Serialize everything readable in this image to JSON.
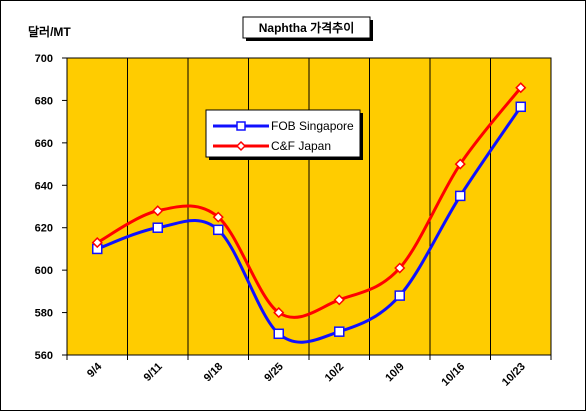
{
  "chart_data": {
    "type": "line",
    "title": "Naphtha 가격추이",
    "ylabel": "달러/MT",
    "xlabel": "",
    "categories": [
      "9/4",
      "9/11",
      "9/18",
      "9/25",
      "10/2",
      "10/9",
      "10/16",
      "10/23"
    ],
    "ylim": [
      560,
      700
    ],
    "yticks": [
      560,
      580,
      600,
      620,
      640,
      660,
      680,
      700
    ],
    "grid": true,
    "legend_position": "upper-left inside plot",
    "plot_background": "#FFCC00",
    "series": [
      {
        "name": "FOB Singapore",
        "values": [
          610,
          620,
          619,
          570,
          571,
          588,
          635,
          677
        ],
        "color": "#1010FF",
        "marker": "square"
      },
      {
        "name": "C&F Japan",
        "values": [
          613,
          628,
          625,
          580,
          586,
          601,
          650,
          686
        ],
        "color": "#FF0000",
        "marker": "diamond"
      }
    ]
  }
}
